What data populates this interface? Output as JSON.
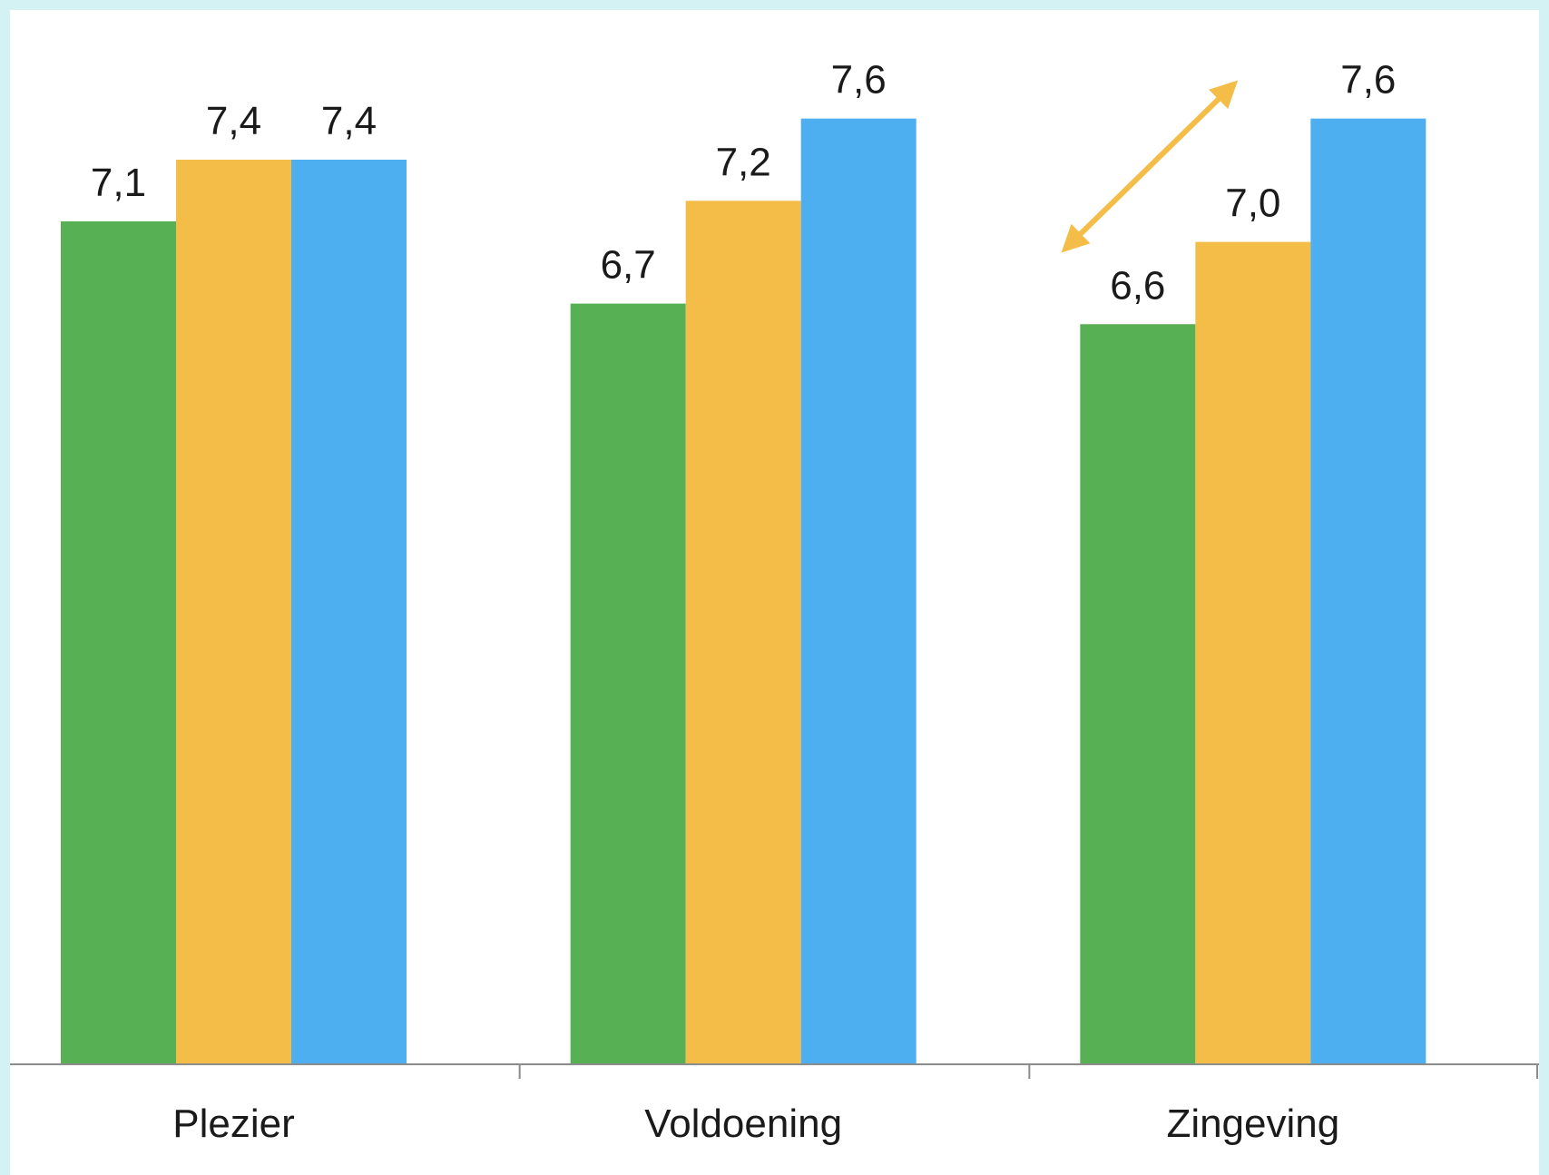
{
  "chart_data": {
    "type": "bar",
    "categories": [
      "Plezier",
      "Voldoening",
      "Zingeving"
    ],
    "series": [
      {
        "values": [
          7.1,
          6.7,
          6.6
        ],
        "color": "#58b054"
      },
      {
        "values": [
          7.4,
          7.2,
          7.0
        ],
        "color": "#f4bd48"
      },
      {
        "values": [
          7.4,
          7.6,
          7.6
        ],
        "color": "#4daff0"
      }
    ],
    "data_labels": [
      [
        "7,1",
        "6,7",
        "6,6"
      ],
      [
        "7,4",
        "7,2",
        "7,0"
      ],
      [
        "7,4",
        "7,6",
        "7,6"
      ]
    ],
    "ylim": [
      3,
      7.7
    ],
    "grid": false,
    "annotations": [
      {
        "type": "double-arrow",
        "from": {
          "category": "Zingeving",
          "series": 0
        },
        "to": {
          "category": "Zingeving",
          "series": 2
        },
        "color": "#f4bd48"
      }
    ]
  }
}
